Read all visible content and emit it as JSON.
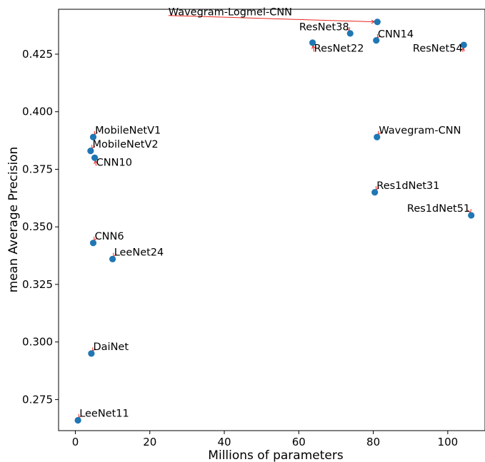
{
  "chart_data": {
    "type": "scatter",
    "title": "",
    "xlabel": "Millions of parameters",
    "ylabel": "mean Average Precision",
    "xlim": [
      -4.5,
      110
    ],
    "ylim": [
      0.2615,
      0.4445
    ],
    "xticks": [
      0,
      20,
      40,
      60,
      80,
      100
    ],
    "xtick_labels": [
      "0",
      "20",
      "40",
      "60",
      "80",
      "100"
    ],
    "yticks": [
      0.275,
      0.3,
      0.325,
      0.35,
      0.375,
      0.4,
      0.425
    ],
    "ytick_labels": [
      "0.275",
      "0.300",
      "0.325",
      "0.350",
      "0.375",
      "0.400",
      "0.425"
    ],
    "grid": false,
    "legend": false,
    "point_color": "#1f77b4",
    "arrow_color": "#e8251c",
    "points": [
      {
        "name": "Wavegram-Logmel-CNN",
        "x": 81.1,
        "y": 0.439,
        "label_x": 25.0,
        "label_y": 0.4418,
        "anchor": "start"
      },
      {
        "name": "ResNet38",
        "x": 73.8,
        "y": 0.434,
        "label_x": 73.5,
        "label_y": 0.4354,
        "anchor": "end"
      },
      {
        "name": "CNN14",
        "x": 80.8,
        "y": 0.431,
        "label_x": 81.2,
        "label_y": 0.4323,
        "anchor": "start"
      },
      {
        "name": "ResNet22",
        "x": 63.7,
        "y": 0.43,
        "label_x": 64.1,
        "label_y": 0.426,
        "anchor": "start"
      },
      {
        "name": "ResNet54",
        "x": 104.3,
        "y": 0.429,
        "label_x": 104.0,
        "label_y": 0.426,
        "anchor": "end"
      },
      {
        "name": "MobileNetV1",
        "x": 4.8,
        "y": 0.389,
        "label_x": 5.3,
        "label_y": 0.3905,
        "anchor": "start"
      },
      {
        "name": "Wavegram-CNN",
        "x": 81.0,
        "y": 0.389,
        "label_x": 81.5,
        "label_y": 0.3905,
        "anchor": "start"
      },
      {
        "name": "MobileNetV2",
        "x": 4.1,
        "y": 0.383,
        "label_x": 4.6,
        "label_y": 0.3845,
        "anchor": "start"
      },
      {
        "name": "CNN10",
        "x": 5.2,
        "y": 0.38,
        "label_x": 5.6,
        "label_y": 0.3765,
        "anchor": "start"
      },
      {
        "name": "Res1dNet31",
        "x": 80.4,
        "y": 0.365,
        "label_x": 80.9,
        "label_y": 0.3665,
        "anchor": "start"
      },
      {
        "name": "Res1dNet51",
        "x": 106.3,
        "y": 0.355,
        "label_x": 106.0,
        "label_y": 0.3566,
        "anchor": "end"
      },
      {
        "name": "CNN6",
        "x": 4.8,
        "y": 0.343,
        "label_x": 5.2,
        "label_y": 0.3445,
        "anchor": "start"
      },
      {
        "name": "LeeNet24",
        "x": 10.0,
        "y": 0.336,
        "label_x": 10.4,
        "label_y": 0.3375,
        "anchor": "start"
      },
      {
        "name": "DaiNet",
        "x": 4.3,
        "y": 0.295,
        "label_x": 4.8,
        "label_y": 0.2965,
        "anchor": "start"
      },
      {
        "name": "LeeNet11",
        "x": 0.7,
        "y": 0.266,
        "label_x": 1.1,
        "label_y": 0.2675,
        "anchor": "start"
      }
    ]
  }
}
